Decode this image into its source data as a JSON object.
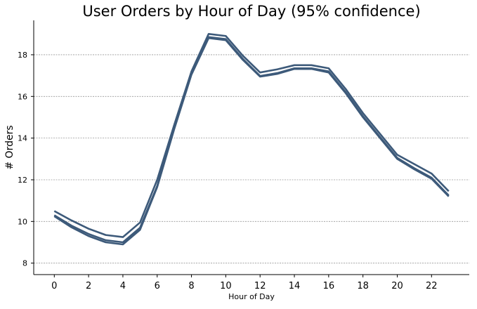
{
  "chart_data": {
    "type": "line",
    "title": "User Orders by Hour of Day (95% confidence)",
    "xlabel": "Hour of Day",
    "ylabel": "# Orders",
    "x": [
      0,
      1,
      2,
      3,
      4,
      5,
      6,
      7,
      8,
      9,
      10,
      11,
      12,
      13,
      14,
      15,
      16,
      17,
      18,
      19,
      20,
      21,
      22,
      23
    ],
    "xlim": [
      -1.2,
      24.2
    ],
    "ylim": [
      7.45,
      19.65
    ],
    "x_ticks": [
      0,
      2,
      4,
      6,
      8,
      10,
      12,
      14,
      16,
      18,
      20,
      22
    ],
    "y_ticks": [
      8,
      10,
      12,
      14,
      16,
      18
    ],
    "grid": "horizontal dashed",
    "color": "#3d5a7a",
    "series": [
      {
        "values": [
          10.5,
          10.05,
          9.65,
          9.35,
          9.25,
          9.95,
          12.0,
          14.65,
          17.2,
          19.0,
          18.9,
          17.95,
          17.15,
          17.3,
          17.5,
          17.5,
          17.35,
          16.35,
          15.2,
          14.2,
          13.2,
          12.75,
          12.3,
          11.45
        ]
      },
      {
        "values": [
          10.3,
          9.8,
          9.4,
          9.1,
          9.0,
          9.7,
          11.7,
          14.5,
          17.1,
          18.85,
          18.75,
          17.8,
          16.98,
          17.12,
          17.35,
          17.35,
          17.2,
          16.2,
          15.05,
          14.05,
          13.05,
          12.55,
          12.1,
          11.25
        ]
      },
      {
        "values": [
          10.25,
          9.72,
          9.3,
          9.0,
          8.9,
          9.6,
          11.65,
          14.45,
          17.05,
          18.8,
          18.7,
          17.75,
          16.95,
          17.08,
          17.32,
          17.32,
          17.15,
          16.15,
          15.0,
          14.0,
          13.0,
          12.5,
          12.05,
          11.2
        ]
      }
    ]
  }
}
